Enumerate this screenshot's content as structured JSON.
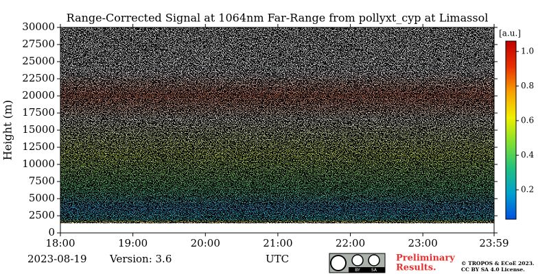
{
  "chart_data": {
    "type": "heatmap",
    "title": "Range-Corrected Signal at 1064nm Far-Range from pollyxt_cyp at Limassol",
    "y_label": "Height (m)",
    "x_label": "UTC",
    "date": "2023-08-19",
    "version": "Version: 3.6",
    "xlim": [
      18,
      23.983
    ],
    "xticks": [
      {
        "value": 18,
        "label": "18:00"
      },
      {
        "value": 19,
        "label": "19:00"
      },
      {
        "value": 20,
        "label": "20:00"
      },
      {
        "value": 21,
        "label": "21:00"
      },
      {
        "value": 22,
        "label": "22:00"
      },
      {
        "value": 23,
        "label": "23:00"
      },
      {
        "value": 23.983,
        "label": "23:59"
      }
    ],
    "ylim": [
      0,
      30000
    ],
    "yticks": [
      0,
      2500,
      5000,
      7500,
      10000,
      12500,
      15000,
      17500,
      20000,
      22500,
      25000,
      27500,
      30000
    ],
    "colorbar": {
      "label": "[a.u.]",
      "lim": [
        0.03,
        1.06
      ],
      "ticks": [
        0.2,
        0.4,
        0.6,
        0.8,
        {
          "value": 1,
          "label": "1.0"
        }
      ],
      "colormap": [
        "#0050e0",
        "#00a0d0",
        "#20c080",
        "#80e030",
        "#f0f000",
        "#f8a000",
        "#e83000",
        "#c00000"
      ]
    },
    "preliminary": [
      "Preliminary",
      "Results."
    ],
    "copyright": [
      "© TROPOS & ECoE 2023.",
      "CC BY SA 4.0 License."
    ],
    "badge_labels": [
      "BY",
      "SA"
    ]
  }
}
